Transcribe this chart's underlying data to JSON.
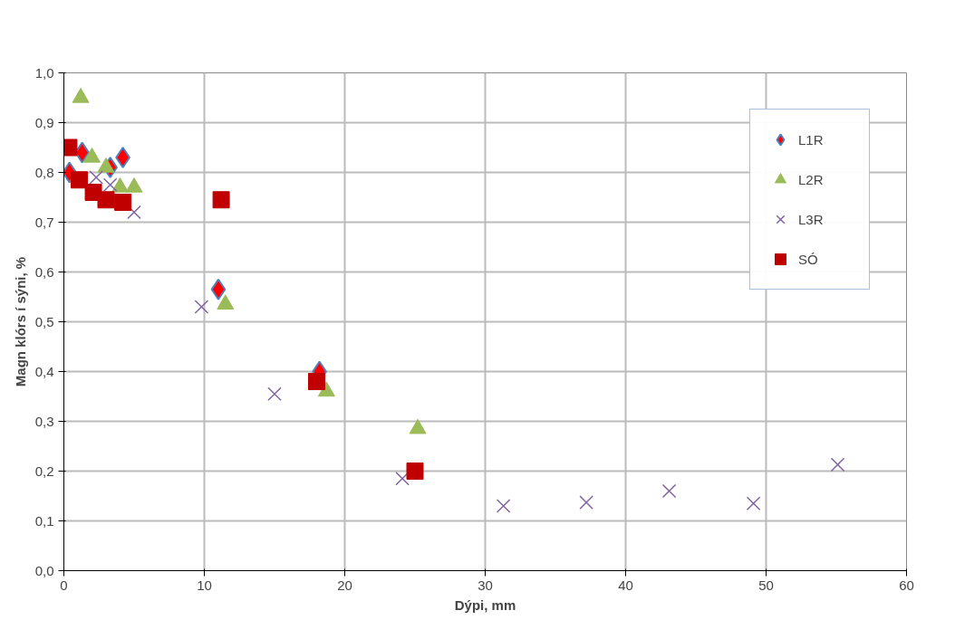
{
  "chart_data": {
    "type": "scatter",
    "xlabel": "Dýpi, mm",
    "ylabel": "Magn klórs í sýni, %",
    "xlim": [
      0,
      60
    ],
    "xticks": [
      0,
      10,
      20,
      30,
      40,
      50,
      60
    ],
    "ylim": [
      0,
      1
    ],
    "yticks": [
      {
        "value": 0,
        "label": "0,0"
      },
      {
        "value": 0.1,
        "label": "0,1"
      },
      {
        "value": 0.2,
        "label": "0,2"
      },
      {
        "value": 0.3,
        "label": "0,3"
      },
      {
        "value": 0.4,
        "label": "0,4"
      },
      {
        "value": 0.5,
        "label": "0,5"
      },
      {
        "value": 0.6,
        "label": "0,6"
      },
      {
        "value": 0.7,
        "label": "0,7"
      },
      {
        "value": 0.8,
        "label": "0,8"
      },
      {
        "value": 0.9,
        "label": "0,9"
      },
      {
        "value": 1,
        "label": "1,0"
      }
    ],
    "grid": true,
    "legend": "top right",
    "series": [
      {
        "name": "L1R",
        "color": "#ff0000",
        "marker": "diamond",
        "x": [
          0.4,
          1.3,
          3.3,
          4.2,
          11.0,
          18.2
        ],
        "values": [
          0.8,
          0.84,
          0.81,
          0.83,
          0.565,
          0.4
        ]
      },
      {
        "name": "L2R",
        "color": "#9bbb59",
        "marker": "triangle",
        "x": [
          1.2,
          2.0,
          3.0,
          4.0,
          5.0,
          11.5,
          18.7,
          25.2
        ],
        "values": [
          0.95,
          0.83,
          0.81,
          0.77,
          0.77,
          0.535,
          0.36,
          0.285
        ]
      },
      {
        "name": "L3R",
        "color": "#8064a2",
        "marker": "cross",
        "x": [
          2.3,
          3.3,
          5.0,
          9.8,
          15.0,
          24.1,
          31.3,
          37.2,
          43.1,
          49.1,
          55.1
        ],
        "values": [
          0.79,
          0.775,
          0.72,
          0.53,
          0.355,
          0.185,
          0.13,
          0.137,
          0.16,
          0.135,
          0.213
        ]
      },
      {
        "name": "SÓ",
        "color": "#c00000",
        "marker": "square",
        "x": [
          0.35,
          1.1,
          2.1,
          3.0,
          4.2,
          11.2,
          18.0,
          25.0
        ],
        "values": [
          0.85,
          0.785,
          0.76,
          0.745,
          0.74,
          0.745,
          0.38,
          0.2
        ]
      }
    ]
  }
}
